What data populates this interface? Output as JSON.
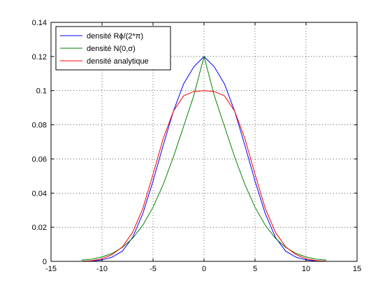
{
  "chart_data": {
    "type": "line",
    "title": "",
    "xlabel": "",
    "ylabel": "",
    "xlim": [
      -15,
      15
    ],
    "ylim": [
      0,
      0.14
    ],
    "xticks": [
      -15,
      -10,
      -5,
      0,
      5,
      10,
      15
    ],
    "yticks": [
      0,
      0.02,
      0.04,
      0.06,
      0.08,
      0.1,
      0.12,
      0.14
    ],
    "xtick_labels": [
      "-15",
      "-10",
      "-5",
      "0",
      "5",
      "10",
      "15"
    ],
    "ytick_labels": [
      "0",
      "0.02",
      "0.04",
      "0.06",
      "0.08",
      "0.1",
      "0.12",
      "0.14"
    ],
    "grid": true,
    "grid_style": "dotted",
    "legend_position": "top-left",
    "series": [
      {
        "name": "densité Rϕ/(2*π)",
        "color": "#0000ff",
        "x": [
          -12,
          -11,
          -10,
          -9,
          -8,
          -7,
          -6,
          -5,
          -4,
          -3,
          -2,
          -1,
          0,
          1,
          2,
          3,
          4,
          5,
          6,
          7,
          8,
          9,
          10,
          11,
          12
        ],
        "y": [
          0,
          0.0002,
          0.0008,
          0.0025,
          0.006,
          0.014,
          0.028,
          0.047,
          0.068,
          0.088,
          0.104,
          0.114,
          0.12,
          0.114,
          0.104,
          0.088,
          0.068,
          0.047,
          0.028,
          0.014,
          0.006,
          0.0025,
          0.0008,
          0.0002,
          0
        ]
      },
      {
        "name": "densité N(0,σ)",
        "color": "#008000",
        "x": [
          -12,
          -11,
          -10,
          -9,
          -8,
          -7,
          -6,
          -5,
          -4,
          -3,
          -2,
          -1,
          0,
          1,
          2,
          3,
          4,
          5,
          6,
          7,
          8,
          9,
          10,
          11,
          12
        ],
        "y": [
          0.0007,
          0.0013,
          0.0026,
          0.0047,
          0.0082,
          0.0135,
          0.0212,
          0.0317,
          0.0451,
          0.0612,
          0.0791,
          0.0972,
          0.12,
          0.0972,
          0.0791,
          0.0612,
          0.0451,
          0.0317,
          0.0212,
          0.0135,
          0.0082,
          0.0047,
          0.0026,
          0.0013,
          0.0007
        ]
      },
      {
        "name": "densité analytique",
        "color": "#ff0000",
        "x": [
          -12,
          -11,
          -10,
          -9,
          -8,
          -7,
          -6,
          -5,
          -4,
          -3,
          -2,
          -1,
          0,
          1,
          2,
          3,
          4,
          5,
          6,
          7,
          8,
          9,
          10,
          11,
          12
        ],
        "y": [
          0,
          0.0004,
          0.0015,
          0.004,
          0.0085,
          0.017,
          0.031,
          0.051,
          0.072,
          0.088,
          0.097,
          0.0995,
          0.1,
          0.0995,
          0.097,
          0.088,
          0.072,
          0.051,
          0.031,
          0.017,
          0.0085,
          0.004,
          0.0015,
          0.0004,
          0
        ]
      }
    ]
  }
}
